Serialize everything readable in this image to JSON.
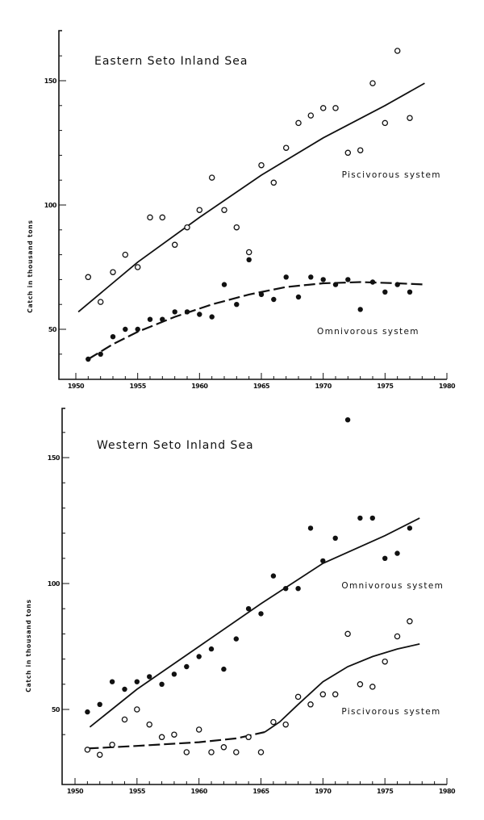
{
  "chart_data": [
    {
      "type": "scatter",
      "title": "Eastern Seto Inland Sea",
      "xlabel": "",
      "ylabel": "Catch in thousand tons",
      "xlim": [
        1950,
        1980
      ],
      "ylim": [
        30,
        170
      ],
      "x_ticks": [
        1950,
        1955,
        1960,
        1965,
        1970,
        1975,
        1980
      ],
      "x_tick_labels": [
        "1950",
        "1955",
        "1960",
        "1965",
        "1970",
        "1975",
        "1980"
      ],
      "y_ticks": [
        50,
        100,
        150
      ],
      "y_tick_labels": [
        "50",
        "100",
        "150"
      ],
      "grid": false,
      "legend": "inline labels",
      "series": [
        {
          "name": "Piscivorous system",
          "marker": "open circle",
          "x": [
            1951,
            1952,
            1953,
            1954,
            1955,
            1956,
            1957,
            1958,
            1959,
            1960,
            1961,
            1962,
            1963,
            1964,
            1965,
            1966,
            1967,
            1968,
            1969,
            1970,
            1971,
            1972,
            1973,
            1974,
            1975,
            1976,
            1977
          ],
          "values": [
            71,
            61,
            73,
            80,
            75,
            95,
            95,
            84,
            91,
            98,
            111,
            98,
            91,
            81,
            116,
            109,
            123,
            133,
            136,
            139,
            139,
            121,
            122,
            149,
            133,
            162,
            135
          ],
          "trend": {
            "style": "solid",
            "x": [
              1950.2,
              1955,
              1960,
              1965,
              1970,
              1975,
              1978.2
            ],
            "y": [
              57,
              77,
              95,
              112,
              127,
              140,
              149
            ]
          },
          "label_position": {
            "x": 1971.5,
            "y": 111
          }
        },
        {
          "name": "Omnivorous system",
          "marker": "filled circle",
          "x": [
            1951,
            1952,
            1953,
            1954,
            1955,
            1956,
            1957,
            1958,
            1959,
            1960,
            1961,
            1962,
            1963,
            1964,
            1965,
            1966,
            1967,
            1968,
            1969,
            1970,
            1971,
            1972,
            1973,
            1974,
            1975,
            1976,
            1977
          ],
          "values": [
            38,
            40,
            47,
            50,
            50,
            54,
            54,
            57,
            57,
            56,
            55,
            68,
            60,
            78,
            64,
            62,
            71,
            63,
            71,
            70,
            68,
            70,
            58,
            69,
            65,
            68,
            65
          ],
          "trend": {
            "style": "long-dash",
            "x": [
              1951,
              1953,
              1955,
              1958,
              1961,
              1964,
              1967,
              1970,
              1973,
              1976,
              1978.3
            ],
            "y": [
              38,
              44,
              49,
              55,
              60,
              64,
              67,
              68.5,
              69,
              68.5,
              68
            ]
          },
          "label_position": {
            "x": 1969.5,
            "y": 48
          }
        }
      ]
    },
    {
      "type": "scatter",
      "title": "Western Seto Inland Sea",
      "xlabel": "",
      "ylabel": "Catch in thousand tons",
      "xlim": [
        1950,
        1980
      ],
      "ylim": [
        30,
        170
      ],
      "x_ticks": [
        1950,
        1955,
        1960,
        1965,
        1970,
        1975,
        1980
      ],
      "x_tick_labels": [
        "1950",
        "1955",
        "1960",
        "1965",
        "1970",
        "1975",
        "1980"
      ],
      "y_ticks": [
        50,
        100,
        150
      ],
      "y_tick_labels": [
        "50",
        "100",
        "150"
      ],
      "grid": false,
      "legend": "inline labels",
      "series": [
        {
          "name": "Omnivorous system",
          "marker": "filled circle",
          "x": [
            1951,
            1952,
            1953,
            1954,
            1955,
            1956,
            1957,
            1958,
            1959,
            1960,
            1961,
            1962,
            1963,
            1964,
            1965,
            1966,
            1967,
            1968,
            1969,
            1970,
            1971,
            1972,
            1973,
            1974,
            1975,
            1976,
            1977
          ],
          "values": [
            49,
            52,
            61,
            58,
            61,
            63,
            60,
            64,
            67,
            71,
            74,
            66,
            78,
            90,
            88,
            103,
            98,
            98,
            122,
            109,
            118,
            165,
            126,
            126,
            110,
            112,
            122
          ],
          "trend": {
            "style": "solid",
            "x": [
              1951.2,
              1955,
              1960,
              1965,
              1970,
              1975,
              1977.8
            ],
            "y": [
              43,
              58,
              75,
              92,
              108,
              119,
              126
            ]
          },
          "label_position": {
            "x": 1971.5,
            "y": 98
          }
        },
        {
          "name": "Piscivorous system",
          "marker": "open circle",
          "x": [
            1951,
            1952,
            1953,
            1954,
            1955,
            1956,
            1957,
            1958,
            1959,
            1960,
            1961,
            1962,
            1963,
            1964,
            1965,
            1966,
            1967,
            1968,
            1969,
            1970,
            1971,
            1972,
            1973,
            1974,
            1975,
            1976,
            1977
          ],
          "values": [
            34,
            32,
            36,
            46,
            50,
            44,
            39,
            40,
            33,
            42,
            33,
            35,
            33,
            39,
            33,
            45,
            44,
            55,
            52,
            56,
            56,
            80,
            60,
            59,
            69,
            79,
            85
          ],
          "trend_dashed": {
            "style": "long-dash",
            "x": [
              1951,
              1955,
              1960,
              1963,
              1965.3
            ],
            "y": [
              34.5,
              35.5,
              37,
              38.5,
              41
            ]
          },
          "trend": {
            "style": "solid",
            "x": [
              1965.3,
              1966.5,
              1968,
              1970,
              1972,
              1974,
              1976,
              1977.8
            ],
            "y": [
              41,
              45,
              52,
              61,
              67,
              71,
              74,
              76
            ]
          },
          "label_position": {
            "x": 1971.5,
            "y": 48
          }
        }
      ]
    }
  ],
  "panels": [
    {
      "title": "Eastern Seto Inland Sea",
      "ylabel": "Catch in thousand tons"
    },
    {
      "title": "Western Seto Inland Sea",
      "ylabel": "Catch in thousand tons"
    }
  ]
}
